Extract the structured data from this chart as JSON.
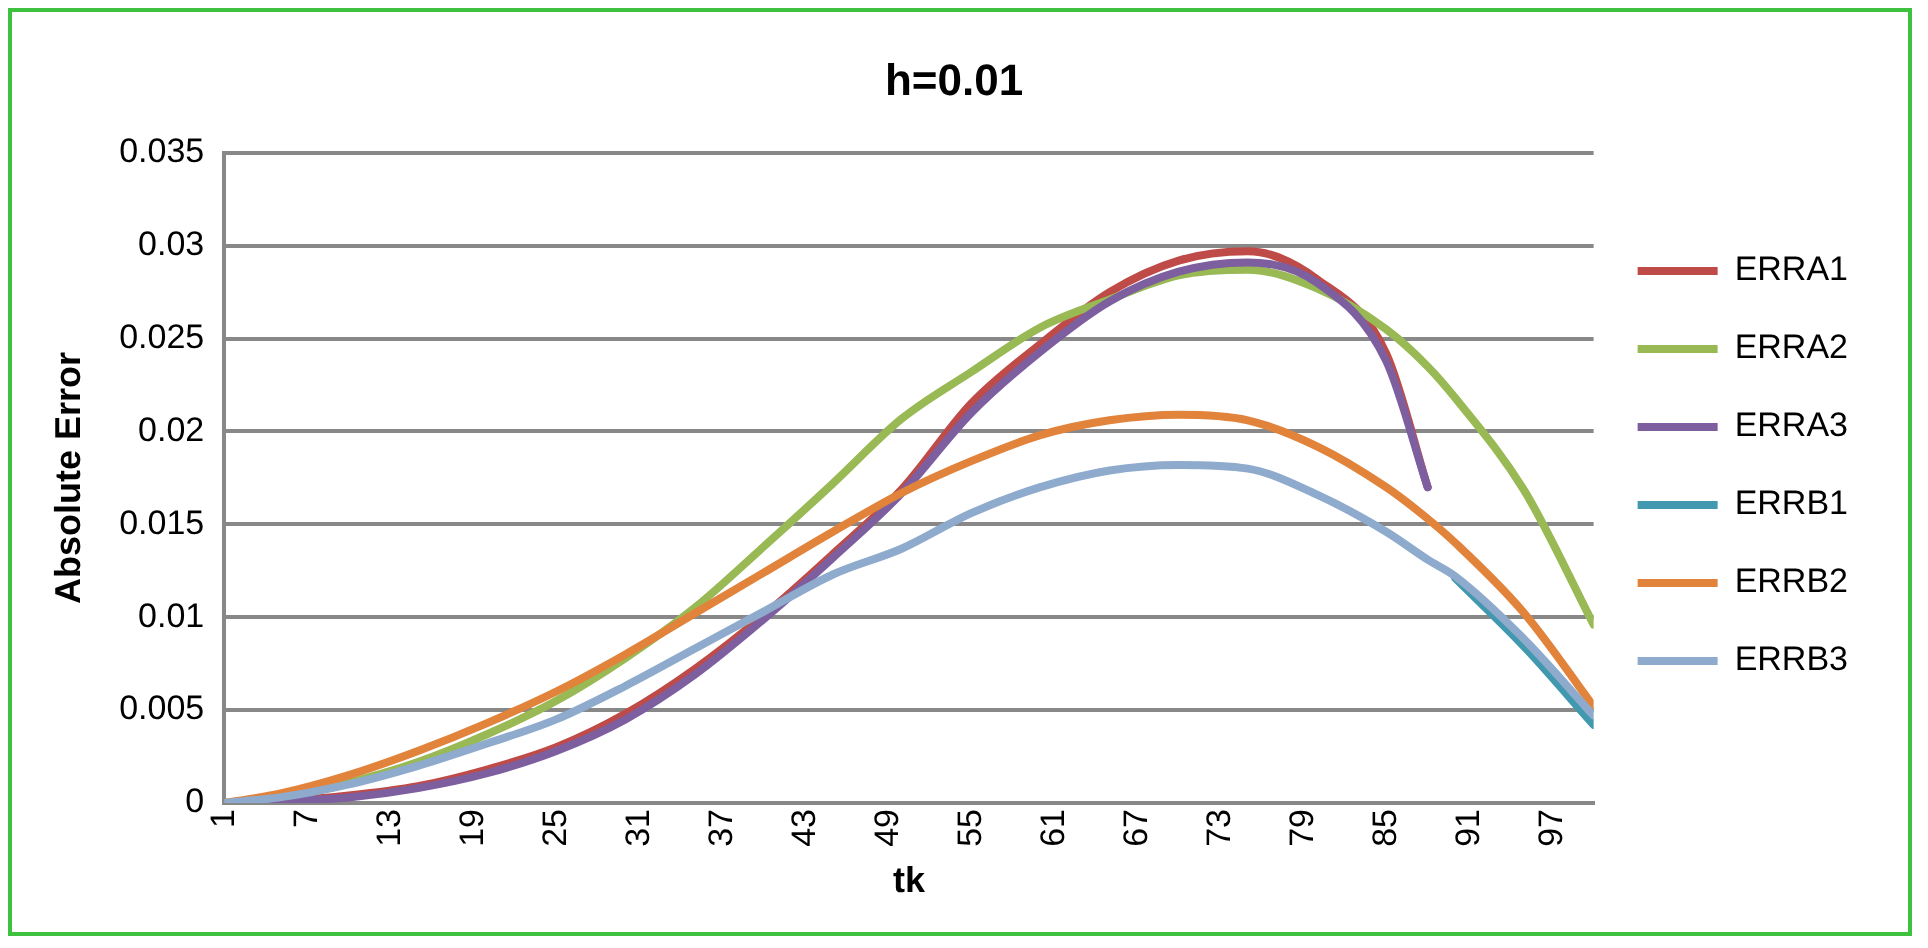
{
  "chart_data": {
    "type": "line",
    "title": "h=0.01",
    "xlabel": "tk",
    "ylabel": "Absolute Error",
    "x": [
      1,
      5,
      10,
      15,
      20,
      25,
      30,
      35,
      40,
      45,
      50,
      55,
      60,
      65,
      70,
      75,
      80,
      85,
      88,
      90,
      95,
      100
    ],
    "series": [
      {
        "name": "ERRA1",
        "color": "#be4b48",
        "values": [
          0,
          0.0001,
          0.0004,
          0.0009,
          0.0018,
          0.003,
          0.0048,
          0.0072,
          0.0101,
          0.0134,
          0.0169,
          0.0215,
          0.0247,
          0.0275,
          0.0292,
          0.0297,
          0.0282,
          0.0242,
          0.017,
          null,
          null,
          null
        ]
      },
      {
        "name": "ERRA2",
        "color": "#98b954",
        "values": [
          0,
          0.0003,
          0.0011,
          0.0022,
          0.0037,
          0.0055,
          0.0078,
          0.0105,
          0.0138,
          0.0172,
          0.0207,
          0.0232,
          0.0256,
          0.0271,
          0.0284,
          0.0287,
          0.0277,
          0.0255,
          0.0235,
          0.0218,
          0.0168,
          0.0096
        ]
      },
      {
        "name": "ERRA3",
        "color": "#7d5fa0",
        "values": [
          0,
          0.0001,
          0.0003,
          0.0008,
          0.0016,
          0.0028,
          0.0045,
          0.0069,
          0.0099,
          0.0132,
          0.0167,
          0.021,
          0.0243,
          0.027,
          0.0286,
          0.0291,
          0.028,
          0.0238,
          0.017,
          null,
          null,
          null
        ]
      },
      {
        "name": "ERRB1",
        "color": "#4198af",
        "values": [
          null,
          null,
          null,
          null,
          null,
          null,
          null,
          null,
          null,
          null,
          null,
          null,
          null,
          null,
          null,
          null,
          null,
          null,
          null,
          0.0121,
          0.0084,
          0.0042
        ]
      },
      {
        "name": "ERRB2",
        "color": "#e2833b",
        "values": [
          0,
          0.0005,
          0.0015,
          0.0028,
          0.0043,
          0.006,
          0.008,
          0.0102,
          0.0124,
          0.0146,
          0.0167,
          0.0184,
          0.0198,
          0.0206,
          0.0209,
          0.0206,
          0.0192,
          0.017,
          0.0153,
          0.014,
          0.0102,
          0.0052
        ]
      },
      {
        "name": "ERRB3",
        "color": "#8eaacc",
        "values": [
          0,
          0.0003,
          0.001,
          0.002,
          0.0032,
          0.0045,
          0.0063,
          0.0083,
          0.0103,
          0.0123,
          0.0137,
          0.0156,
          0.017,
          0.0179,
          0.0182,
          0.018,
          0.0166,
          0.0146,
          0.0131,
          0.0122,
          0.0088,
          0.0047
        ]
      }
    ],
    "xlim": [
      1,
      100
    ],
    "xticks": [
      1,
      7,
      13,
      19,
      25,
      31,
      37,
      43,
      49,
      55,
      61,
      67,
      73,
      79,
      85,
      91,
      97
    ],
    "ylim": [
      0,
      0.035
    ],
    "yticks": [
      0,
      0.005,
      0.01,
      0.015,
      0.02,
      0.025,
      0.03,
      0.035
    ],
    "grid": "y",
    "legend": "right",
    "marker": "none",
    "line_style": "solid"
  }
}
